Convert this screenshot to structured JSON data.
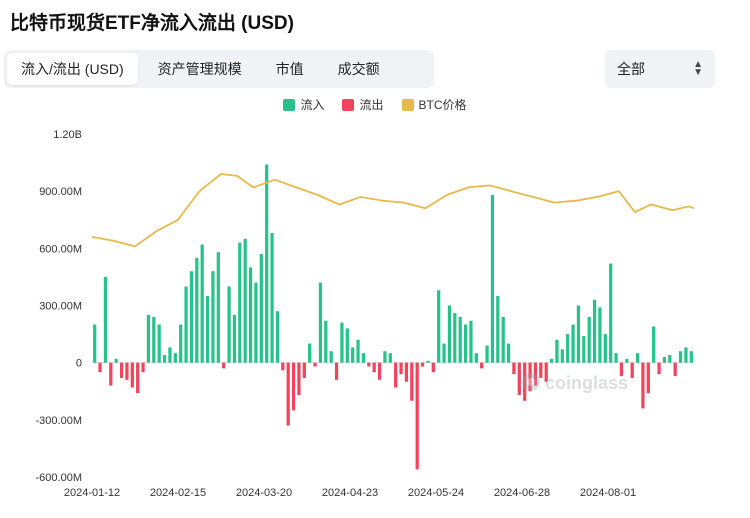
{
  "header": {
    "title": "比特币现货ETF净流入流出 (USD)"
  },
  "tabs": [
    {
      "label": "流入/流出 (USD)",
      "active": true
    },
    {
      "label": "资产管理规模",
      "active": false
    },
    {
      "label": "市值",
      "active": false
    },
    {
      "label": "成交额",
      "active": false
    }
  ],
  "filter": {
    "selected": "全部"
  },
  "watermark": "coinglass",
  "colors": {
    "inflow": "#25c28a",
    "outflow": "#f0435c",
    "btc": "#e8b94a"
  },
  "chart_data": {
    "type": "bar",
    "legend": [
      {
        "key": "inflow",
        "label": "流入"
      },
      {
        "key": "outflow",
        "label": "流出"
      },
      {
        "key": "btc",
        "label": "BTC价格"
      }
    ],
    "legend_position": "top-center",
    "grid": false,
    "ylim": [
      -600,
      1200
    ],
    "y_ticks": [
      -600,
      -300,
      0,
      300,
      600,
      900,
      1200
    ],
    "y_tick_labels": [
      "-600.00M",
      "-300.00M",
      "0",
      "300.00M",
      "600.00M",
      "900.00M",
      "1.20B"
    ],
    "x_tick_labels": [
      "2024-01-12",
      "2024-02-15",
      "2024-03-20",
      "2024-04-23",
      "2024-05-24",
      "2024-06-28",
      "2024-08-01"
    ],
    "x_tick_index": [
      0,
      16,
      32,
      48,
      64,
      80,
      96
    ],
    "net_flow_musd": [
      200,
      -50,
      450,
      -120,
      20,
      -80,
      -90,
      -130,
      -160,
      -50,
      250,
      240,
      200,
      40,
      80,
      50,
      200,
      400,
      480,
      550,
      620,
      350,
      480,
      580,
      -30,
      400,
      250,
      630,
      650,
      500,
      420,
      570,
      1040,
      680,
      270,
      -40,
      -330,
      -250,
      -170,
      -80,
      100,
      -20,
      420,
      220,
      60,
      -90,
      210,
      180,
      80,
      120,
      50,
      -20,
      -50,
      -90,
      60,
      50,
      -130,
      -60,
      -100,
      -200,
      -560,
      -20,
      10,
      -50,
      380,
      100,
      300,
      260,
      240,
      200,
      220,
      50,
      -30,
      90,
      880,
      350,
      240,
      100,
      -60,
      -170,
      -200,
      -150,
      -120,
      -80,
      -100,
      20,
      120,
      70,
      150,
      200,
      300,
      140,
      240,
      330,
      290,
      150,
      520,
      50,
      -70,
      20,
      -80,
      50,
      -240,
      -160,
      190,
      -60,
      30,
      40,
      -70,
      60,
      80,
      60
    ],
    "btc_price_points": [
      [
        0,
        660
      ],
      [
        4,
        640
      ],
      [
        8,
        610
      ],
      [
        12,
        690
      ],
      [
        16,
        750
      ],
      [
        20,
        900
      ],
      [
        24,
        990
      ],
      [
        27,
        980
      ],
      [
        30,
        920
      ],
      [
        34,
        960
      ],
      [
        38,
        920
      ],
      [
        42,
        880
      ],
      [
        46,
        830
      ],
      [
        50,
        870
      ],
      [
        54,
        850
      ],
      [
        58,
        840
      ],
      [
        62,
        810
      ],
      [
        66,
        880
      ],
      [
        70,
        920
      ],
      [
        74,
        930
      ],
      [
        78,
        900
      ],
      [
        82,
        870
      ],
      [
        86,
        840
      ],
      [
        90,
        850
      ],
      [
        94,
        870
      ],
      [
        98,
        900
      ],
      [
        101,
        790
      ],
      [
        104,
        830
      ],
      [
        108,
        800
      ],
      [
        111,
        820
      ],
      [
        112,
        810
      ]
    ],
    "btc_price_note": "secondary axis, unlabeled"
  }
}
